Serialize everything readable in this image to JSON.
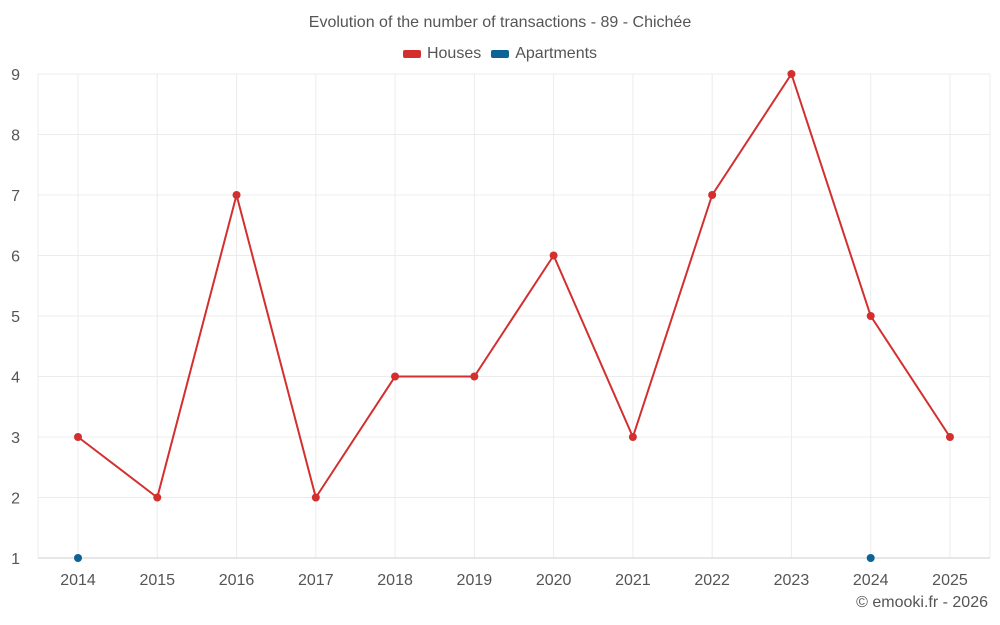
{
  "chart_data": {
    "type": "line",
    "title": "Evolution of the number of transactions - 89 - Chichée",
    "xlabel": "",
    "ylabel": "",
    "categories": [
      "2014",
      "2015",
      "2016",
      "2017",
      "2018",
      "2019",
      "2020",
      "2021",
      "2022",
      "2023",
      "2024",
      "2025"
    ],
    "ylim": [
      1,
      9
    ],
    "yticks": [
      "1",
      "2",
      "3",
      "4",
      "5",
      "6",
      "7",
      "8",
      "9"
    ],
    "grid": true,
    "legend_position": "top-center",
    "series": [
      {
        "name": "Houses",
        "color": "#d32f2f",
        "values": [
          3,
          2,
          7,
          2,
          4,
          4,
          6,
          3,
          7,
          9,
          5,
          3
        ]
      },
      {
        "name": "Apartments",
        "color": "#0d6296",
        "values": [
          1,
          null,
          null,
          null,
          null,
          null,
          null,
          null,
          null,
          null,
          1,
          null
        ]
      }
    ]
  },
  "footer": {
    "credit": "© emooki.fr - 2026"
  }
}
